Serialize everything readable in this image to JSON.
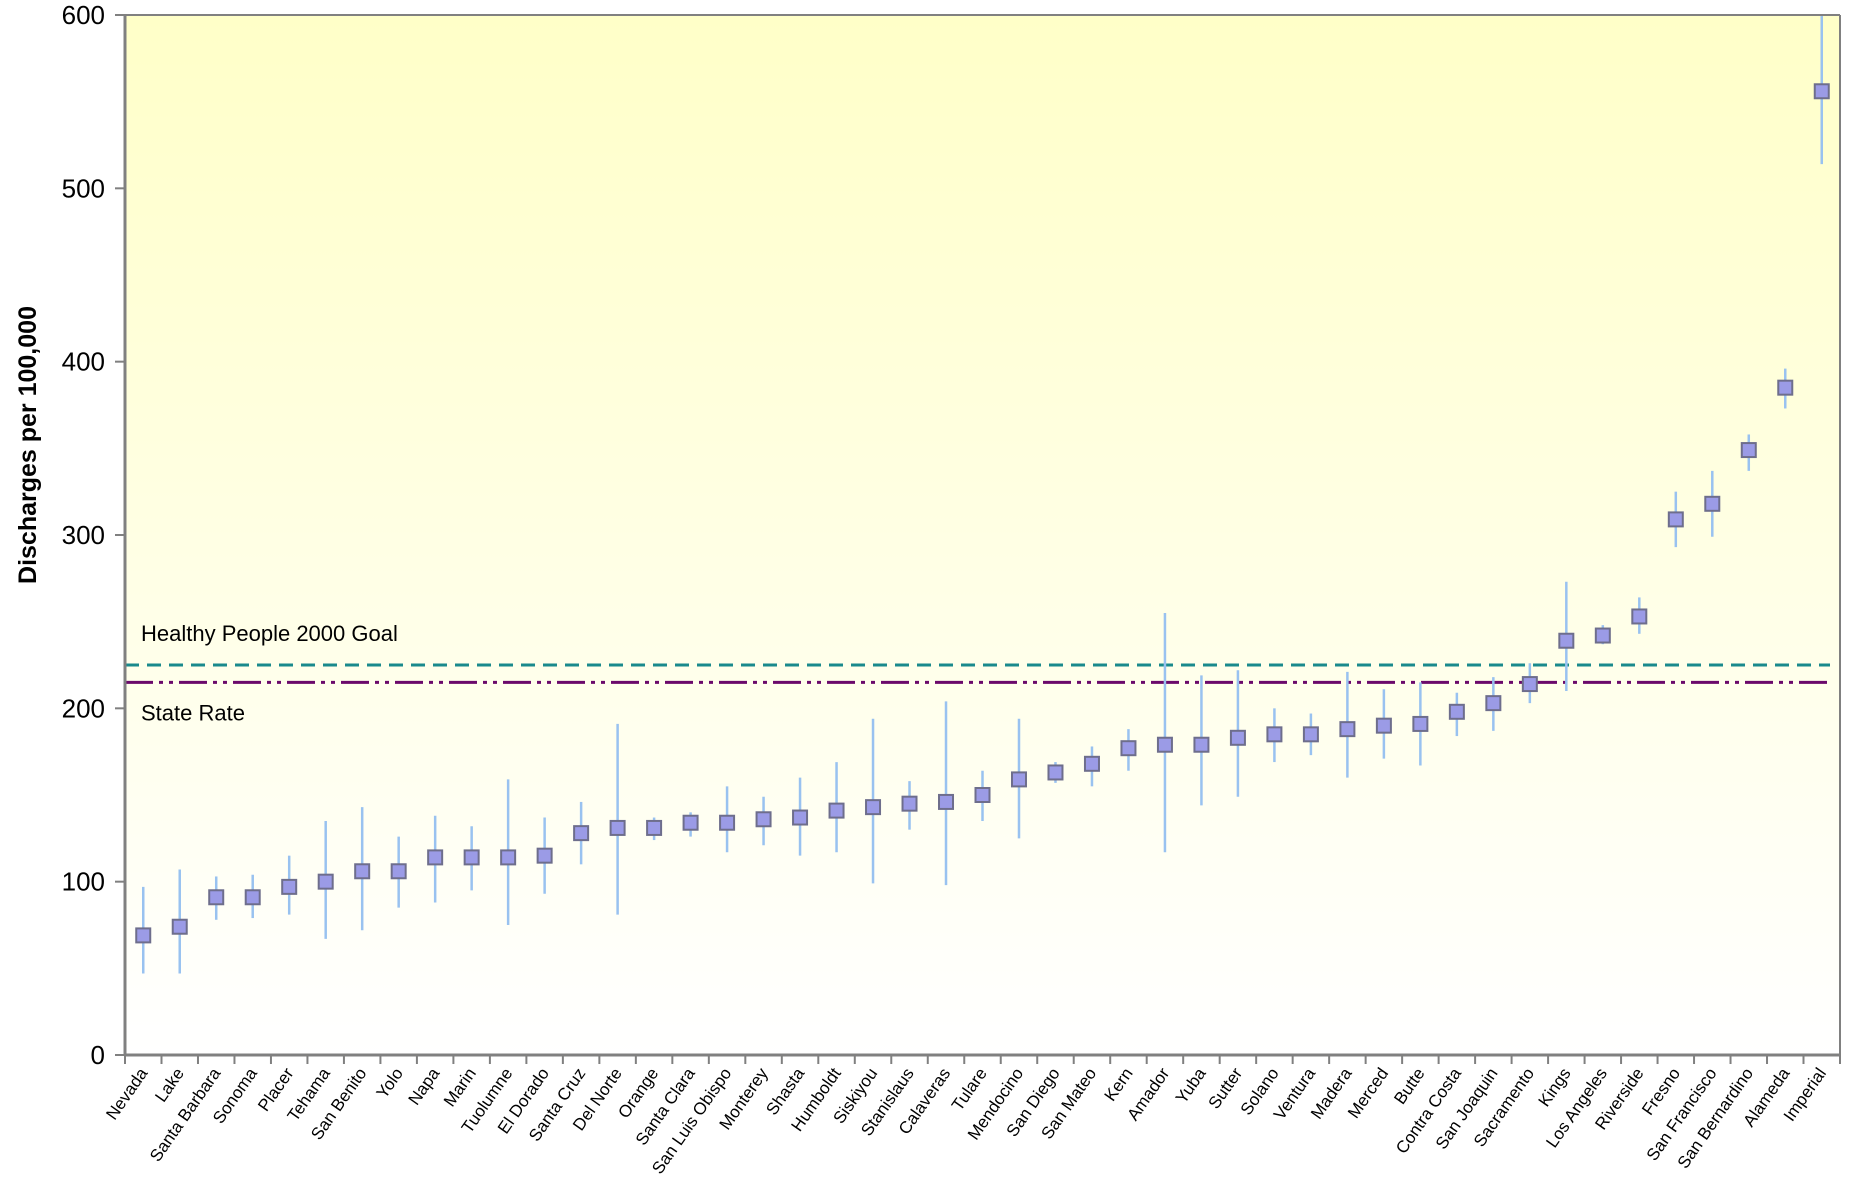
{
  "chart_data": {
    "type": "scatter",
    "title": "",
    "xlabel": "",
    "ylabel": "Discharges per 100,000",
    "ylim": [
      0,
      600
    ],
    "yticks": [
      0,
      100,
      200,
      300,
      400,
      500,
      600
    ],
    "grid": false,
    "categories": [
      "Nevada",
      "Lake",
      "Santa Barbara",
      "Sonoma",
      "Placer",
      "Tehama",
      "San Benito",
      "Yolo",
      "Napa",
      "Marin",
      "Tuolumne",
      "El Dorado",
      "Santa Cruz",
      "Del Norte",
      "Orange",
      "Santa Clara",
      "San Luis Obispo",
      "Monterey",
      "Shasta",
      "Humboldt",
      "Siskiyou",
      "Stanislaus",
      "Calaveras",
      "Tulare",
      "Mendocino",
      "San Diego",
      "San Mateo",
      "Kern",
      "Amador",
      "Yuba",
      "Sutter",
      "Solano",
      "Ventura",
      "Madera",
      "Merced",
      "Butte",
      "Contra Costa",
      "San Joaquin",
      "Sacramento",
      "Kings",
      "Los Angeles",
      "Riverside",
      "Fresno",
      "San Francisco",
      "San Bernardino",
      "Alameda",
      "Imperial"
    ],
    "series": [
      {
        "values": [
          69,
          74,
          91,
          91,
          97,
          100,
          106,
          106,
          114,
          114,
          114,
          115,
          128,
          131,
          131,
          134,
          134,
          136,
          137,
          141,
          143,
          145,
          146,
          150,
          159,
          163,
          168,
          177,
          179,
          179,
          183,
          185,
          185,
          188,
          190,
          191,
          198,
          203,
          214,
          239,
          242,
          253,
          309,
          318,
          349,
          385,
          556
        ],
        "lower": [
          47,
          47,
          78,
          79,
          81,
          67,
          72,
          85,
          88,
          95,
          75,
          93,
          110,
          81,
          124,
          126,
          117,
          121,
          115,
          117,
          99,
          130,
          98,
          135,
          125,
          157,
          155,
          164,
          117,
          144,
          149,
          169,
          173,
          160,
          171,
          167,
          184,
          187,
          203,
          210,
          237,
          243,
          293,
          299,
          337,
          373,
          514
        ],
        "upper": [
          97,
          107,
          103,
          104,
          115,
          135,
          143,
          126,
          138,
          132,
          159,
          137,
          146,
          191,
          137,
          140,
          155,
          149,
          160,
          169,
          194,
          158,
          204,
          164,
          194,
          169,
          178,
          188,
          255,
          219,
          222,
          200,
          197,
          221,
          211,
          215,
          209,
          218,
          226,
          273,
          248,
          264,
          325,
          337,
          358,
          396,
          600
        ]
      }
    ],
    "reference_lines": [
      {
        "label": "Healthy People 2000 Goal",
        "value": 225,
        "style": "dashed",
        "color": "#1a8a8c"
      },
      {
        "label": "State Rate",
        "value": 215,
        "style": "dash-dot-dot",
        "color": "#6b0a6b"
      }
    ],
    "colors": {
      "marker_fill": "#9b9be6",
      "marker_stroke": "#6e6e8c",
      "error_bar": "#99c2f0",
      "background_top": "#ffffc8",
      "background_bottom": "#ffffff",
      "axis": "#808080"
    }
  }
}
